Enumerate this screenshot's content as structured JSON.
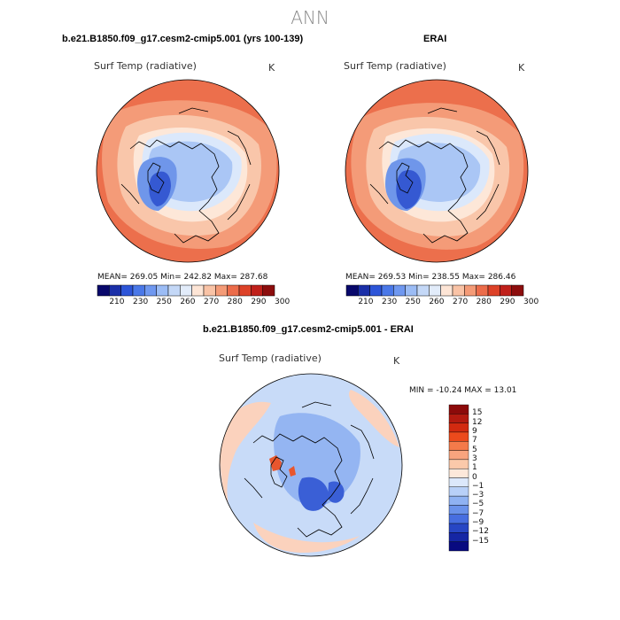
{
  "page_title": "ANN",
  "panels": [
    {
      "title": "b.e21.B1850.f09_g17.cesm2-cmip5.001 (yrs 100-139)",
      "variable": "Surf Temp (radiative)",
      "units": "K",
      "stats": {
        "mean": "269.05",
        "min": "242.82",
        "max": "287.68"
      },
      "stats_text": "MEAN= 269.05   Min= 242.82   Max= 287.68"
    },
    {
      "title": "ERAI",
      "variable": "Surf Temp (radiative)",
      "units": "K",
      "stats": {
        "mean": "269.53",
        "min": "238.55",
        "max": "286.46"
      },
      "stats_text": "MEAN= 269.53   Min= 238.55   Max= 286.46"
    },
    {
      "title": "b.e21.B1850.f09_g17.cesm2-cmip5.001 - ERAI",
      "variable": "Surf Temp (radiative)",
      "units": "K",
      "stats": {
        "min": "-10.24",
        "max": "13.01"
      },
      "stats_text": "MIN = -10.24 MAX =  13.01"
    }
  ],
  "abs_colorbar": {
    "labels": [
      "210",
      "230",
      "250",
      "260",
      "270",
      "280",
      "290",
      "300"
    ],
    "colors": [
      "#08086b",
      "#1a2fa8",
      "#2d55d8",
      "#4a78e8",
      "#6f98f0",
      "#9bbcf5",
      "#c4d8f7",
      "#e2ecfa",
      "#fde5d6",
      "#f9c3a6",
      "#f49b77",
      "#ec6c4a",
      "#dd4228",
      "#c0201a",
      "#8c0d0d"
    ]
  },
  "diff_colorbar": {
    "labels": [
      "15",
      "12",
      "9",
      "7",
      "5",
      "3",
      "1",
      "0",
      "−1",
      "−3",
      "−5",
      "−7",
      "−9",
      "−12",
      "−15"
    ],
    "colors": [
      "#8c0a0a",
      "#b31a10",
      "#d22a10",
      "#ec4a1c",
      "#f47a4a",
      "#f8a47e",
      "#fbc9aa",
      "#fde8da",
      "#dce8fb",
      "#b8d0f8",
      "#8fb2f2",
      "#6a92ea",
      "#476ee0",
      "#2746c4",
      "#1526a4",
      "#080a80"
    ]
  },
  "map_colors": {
    "warm_outer": "#ec6f4c",
    "warm_mid": "#f49b78",
    "warm_light": "#f9c6aa",
    "neutral": "#fde7d8",
    "cold_light": "#dbe8fb",
    "cold_mid": "#aac6f5",
    "cold_dark": "#6f96ea",
    "cold_deep": "#3559d2",
    "diff_base": "#c8dbf8",
    "diff_blue": "#94b5f2",
    "diff_deep": "#3a5fd6",
    "diff_red": "#e8562e",
    "diff_warm": "#fbd2bd"
  }
}
